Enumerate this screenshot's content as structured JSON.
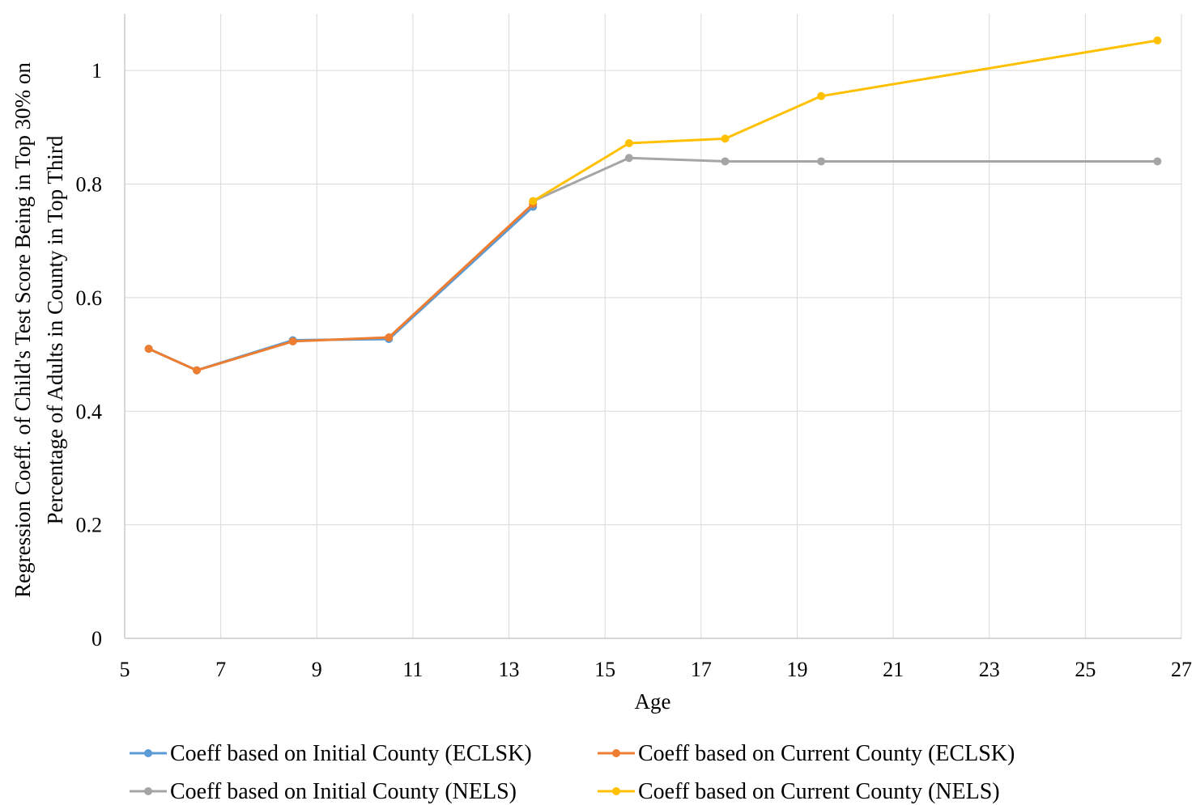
{
  "chart_data": {
    "type": "line",
    "xlabel": "Age",
    "ylabel_lines": [
      "Regression Coeff. of Child's Test Score Being  in  Top 30% on",
      "Percentage of Adults in County in Top Third"
    ],
    "xlim": [
      5,
      27
    ],
    "ylim": [
      0,
      1.1
    ],
    "x_ticks": [
      5,
      7,
      9,
      11,
      13,
      15,
      17,
      19,
      21,
      23,
      25,
      27
    ],
    "y_ticks": [
      0,
      0.2,
      0.4,
      0.6,
      0.8,
      1
    ],
    "y_tick_labels": [
      "0",
      "0.2",
      "0.4",
      "0.6",
      "0.8",
      "1"
    ],
    "grid": true,
    "legend_position": "bottom",
    "series": [
      {
        "name": "Coeff based on Initial County (ECLSK)",
        "color": "#5B9BD5",
        "x": [
          5.5,
          6.5,
          8.5,
          10.5,
          13.5
        ],
        "y": [
          0.51,
          0.472,
          0.525,
          0.527,
          0.76
        ]
      },
      {
        "name": "Coeff based on Current County (ECLSK)",
        "color": "#ED7D31",
        "x": [
          5.5,
          6.5,
          8.5,
          10.5,
          13.5
        ],
        "y": [
          0.51,
          0.472,
          0.523,
          0.53,
          0.765
        ]
      },
      {
        "name": "Coeff based on Initial County (NELS)",
        "color": "#A5A5A5",
        "x": [
          13.5,
          15.5,
          17.5,
          19.5,
          26.5
        ],
        "y": [
          0.77,
          0.846,
          0.84,
          0.84,
          0.84
        ]
      },
      {
        "name": "Coeff based on Current County (NELS)",
        "color": "#FFC000",
        "x": [
          13.5,
          15.5,
          17.5,
          19.5,
          26.5
        ],
        "y": [
          0.77,
          0.872,
          0.88,
          0.955,
          1.053
        ]
      }
    ]
  }
}
